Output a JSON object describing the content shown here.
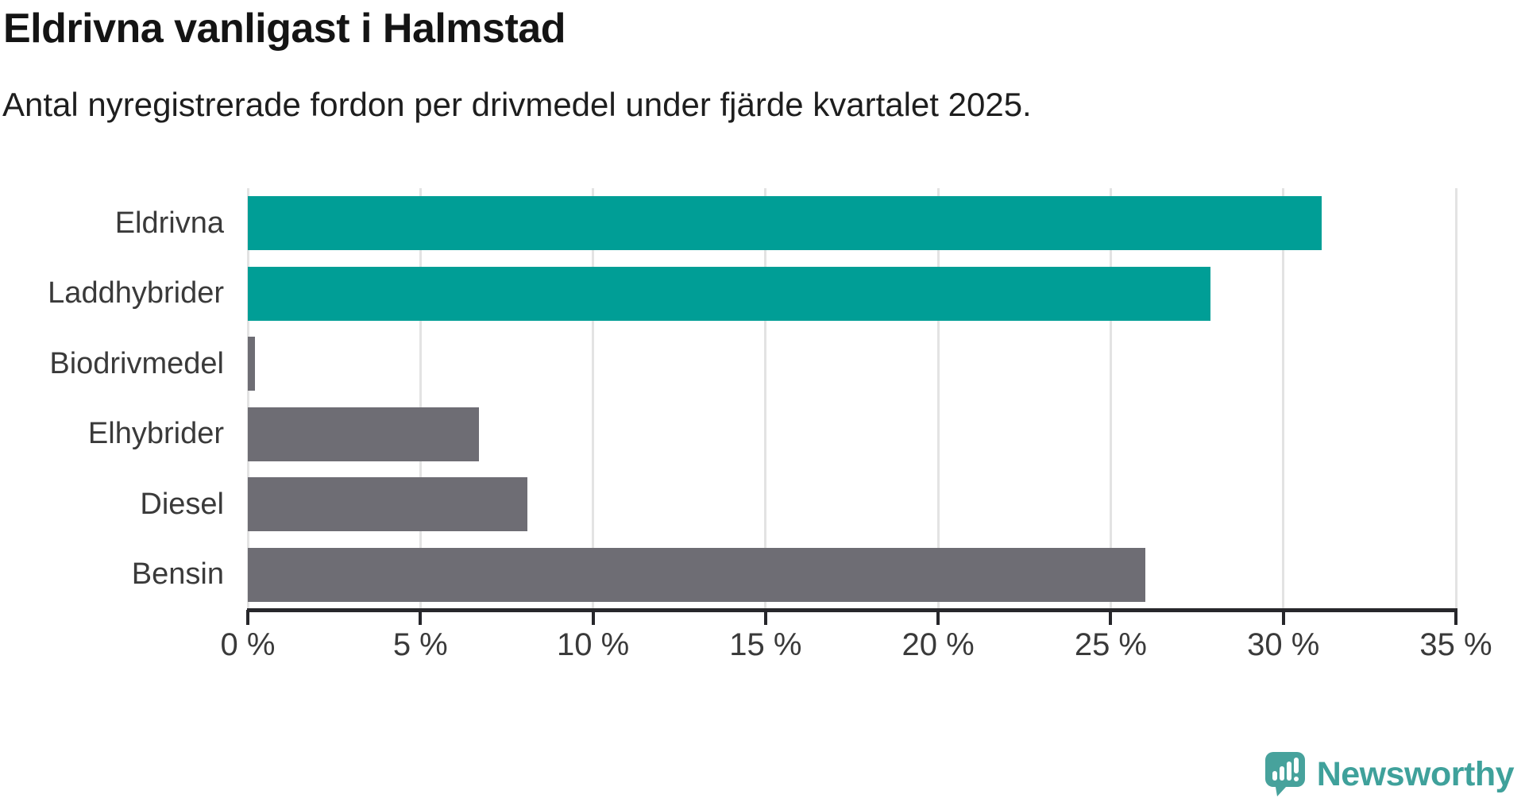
{
  "header": {
    "title": "Eldrivna vanligast i Halmstad",
    "subtitle": "Antal nyregistrerade fordon per drivmedel under fjärde kvartalet 2025."
  },
  "chart_data": {
    "type": "bar",
    "orientation": "horizontal",
    "title": "Eldrivna vanligast i Halmstad",
    "subtitle": "Antal nyregistrerade fordon per drivmedel under fjärde kvartalet 2025.",
    "categories": [
      "Eldrivna",
      "Laddhybrider",
      "Biodrivmedel",
      "Elhybrider",
      "Diesel",
      "Bensin"
    ],
    "values": [
      31.1,
      27.9,
      0.2,
      6.7,
      8.1,
      26.0
    ],
    "unit": "%",
    "bar_colors": [
      "#009E96",
      "#009E96",
      "#6E6D74",
      "#6E6D74",
      "#6E6D74",
      "#6E6D74"
    ],
    "xlabel": "",
    "ylabel": "",
    "xlim": [
      0,
      35
    ],
    "x_ticks": [
      0,
      5,
      10,
      15,
      20,
      25,
      30,
      35
    ],
    "x_tick_labels": [
      "0 %",
      "5 %",
      "10 %",
      "15 %",
      "20 %",
      "25 %",
      "30 %",
      "35 %"
    ],
    "grid": "vertical-gridlines-on",
    "legend": "none"
  },
  "branding": {
    "logo_text": "Newsworthy",
    "logo_color": "#3FA19B",
    "icon": "bar-chart-speech-bubble-icon"
  },
  "colors": {
    "accent_teal": "#009E96",
    "neutral_gray": "#6E6D74",
    "gridline": "#E3E3E3",
    "axis": "#27272B",
    "title_text": "#141414",
    "label_text": "#3A3A3A"
  }
}
